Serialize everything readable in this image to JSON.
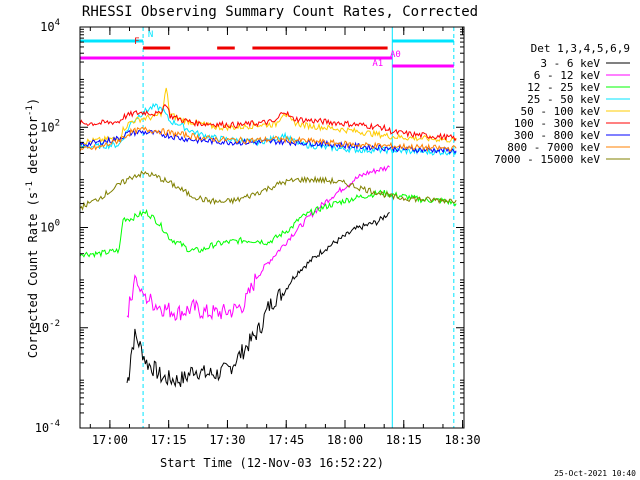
{
  "chart_data": {
    "type": "line",
    "title": "RHESSI Observing Summary Count Rates, Corrected",
    "xlabel": "Start Time (12-Nov-03 16:52:22)",
    "ylabel_main": "Corrected Count Rate (s",
    "ylabel_sup1": "-1",
    "ylabel_mid": " detector",
    "ylabel_sup2": "-1",
    "ylabel_end": ")",
    "x_start_min": 0,
    "x_end_min": 98,
    "x_ticks": [
      {
        "label": "17:00",
        "t": 7.63
      },
      {
        "label": "17:15",
        "t": 22.63
      },
      {
        "label": "17:30",
        "t": 37.63
      },
      {
        "label": "17:45",
        "t": 52.63
      },
      {
        "label": "18:00",
        "t": 67.63
      },
      {
        "label": "18:15",
        "t": 82.63
      },
      {
        "label": "18:30",
        "t": 97.63
      }
    ],
    "y_scale": "log",
    "ylim": [
      0.0001,
      10000
    ],
    "y_ticks": [
      {
        "base": "10",
        "exp": "4",
        "value": 10000
      },
      {
        "base": "10",
        "exp": "2",
        "value": 100
      },
      {
        "base": "10",
        "exp": "0",
        "value": 1
      },
      {
        "base": "10",
        "exp": "-2",
        "value": 0.01
      },
      {
        "base": "10",
        "exp": "-4",
        "value": 0.0001
      }
    ],
    "legend_title": "Det 1,3,4,5,6,9",
    "series": [
      {
        "name": "3 - 6 keV",
        "color": "#000000",
        "points": [
          [
            12,
            0.0008
          ],
          [
            12.5,
            0.0012
          ],
          [
            13,
            0.003
          ],
          [
            14,
            0.007
          ],
          [
            15,
            0.005
          ],
          [
            17,
            0.002
          ],
          [
            19,
            0.0015
          ],
          [
            21,
            0.001
          ],
          [
            25,
            0.0009
          ],
          [
            27,
            0.001
          ],
          [
            29,
            0.0015
          ],
          [
            32,
            0.0012
          ],
          [
            35,
            0.0012
          ],
          [
            38,
            0.0015
          ],
          [
            41,
            0.003
          ],
          [
            44,
            0.006
          ],
          [
            46,
            0.01
          ],
          [
            48,
            0.025
          ],
          [
            50,
            0.04
          ],
          [
            52,
            0.05
          ],
          [
            54,
            0.09
          ],
          [
            56,
            0.14
          ],
          [
            59,
            0.22
          ],
          [
            62,
            0.35
          ],
          [
            65,
            0.5
          ],
          [
            68,
            0.7
          ],
          [
            70,
            0.9
          ],
          [
            73,
            1.1
          ],
          [
            76,
            1.3
          ],
          [
            79,
            2.0
          ]
        ]
      },
      {
        "name": "6 - 12 keV",
        "color": "#ff00ff",
        "points": [
          [
            12,
            0.02
          ],
          [
            13,
            0.035
          ],
          [
            14,
            0.12
          ],
          [
            15,
            0.06
          ],
          [
            17,
            0.04
          ],
          [
            19,
            0.03
          ],
          [
            21,
            0.025
          ],
          [
            25,
            0.02
          ],
          [
            27,
            0.022
          ],
          [
            29,
            0.025
          ],
          [
            32,
            0.02
          ],
          [
            36,
            0.02
          ],
          [
            39,
            0.022
          ],
          [
            42,
            0.03
          ],
          [
            45,
            0.1
          ],
          [
            48,
            0.2
          ],
          [
            50,
            0.3
          ],
          [
            52,
            0.45
          ],
          [
            54,
            0.7
          ],
          [
            56,
            1.0
          ],
          [
            58,
            1.5
          ],
          [
            61,
            2.5
          ],
          [
            64,
            4
          ],
          [
            67,
            6
          ],
          [
            70,
            9
          ],
          [
            73,
            12
          ],
          [
            76,
            14
          ],
          [
            79,
            16
          ]
        ]
      },
      {
        "name": "12 - 25 keV",
        "color": "#00ff00",
        "points": [
          [
            0,
            0.3
          ],
          [
            5,
            0.3
          ],
          [
            10,
            0.35
          ],
          [
            11,
            1.5
          ],
          [
            13,
            1.5
          ],
          [
            15,
            1.8
          ],
          [
            17,
            2.0
          ],
          [
            19,
            1.5
          ],
          [
            21,
            1.0
          ],
          [
            23,
            0.6
          ],
          [
            26,
            0.45
          ],
          [
            28,
            0.35
          ],
          [
            31,
            0.35
          ],
          [
            34,
            0.45
          ],
          [
            37,
            0.5
          ],
          [
            41,
            0.55
          ],
          [
            45,
            0.55
          ],
          [
            48,
            0.5
          ],
          [
            51,
            0.7
          ],
          [
            54,
            1.0
          ],
          [
            56,
            1.5
          ],
          [
            59,
            2.0
          ],
          [
            62,
            2.5
          ],
          [
            65,
            3.0
          ],
          [
            68,
            3.5
          ],
          [
            71,
            4.0
          ],
          [
            74,
            4.5
          ],
          [
            77,
            5.0
          ],
          [
            80,
            4.5
          ],
          [
            84,
            4.0
          ],
          [
            88,
            3.5
          ],
          [
            92,
            3.5
          ],
          [
            96,
            3.0
          ]
        ]
      },
      {
        "name": "25 - 50 keV",
        "color": "#00e5ff",
        "points": [
          [
            0,
            40
          ],
          [
            5,
            42
          ],
          [
            10,
            45
          ],
          [
            11,
            60
          ],
          [
            13,
            120
          ],
          [
            15,
            170
          ],
          [
            17,
            220
          ],
          [
            19,
            260
          ],
          [
            21,
            230
          ],
          [
            23,
            130
          ],
          [
            25,
            120
          ],
          [
            27,
            95
          ],
          [
            30,
            75
          ],
          [
            35,
            60
          ],
          [
            40,
            55
          ],
          [
            45,
            50
          ],
          [
            50,
            60
          ],
          [
            52,
            70
          ],
          [
            54,
            55
          ],
          [
            57,
            45
          ],
          [
            62,
            40
          ],
          [
            67,
            37
          ],
          [
            72,
            35
          ],
          [
            77,
            35
          ],
          [
            80,
            34
          ],
          [
            85,
            33
          ],
          [
            90,
            32
          ],
          [
            96,
            32
          ]
        ]
      },
      {
        "name": "50 - 100 keV",
        "color": "#ffcc00",
        "points": [
          [
            0,
            50
          ],
          [
            5,
            55
          ],
          [
            10,
            60
          ],
          [
            11,
            90
          ],
          [
            13,
            130
          ],
          [
            16,
            150
          ],
          [
            19,
            160
          ],
          [
            21,
            200
          ],
          [
            22,
            600
          ],
          [
            23,
            180
          ],
          [
            26,
            140
          ],
          [
            30,
            120
          ],
          [
            35,
            100
          ],
          [
            40,
            100
          ],
          [
            45,
            110
          ],
          [
            50,
            115
          ],
          [
            52,
            200
          ],
          [
            54,
            130
          ],
          [
            57,
            110
          ],
          [
            62,
            100
          ],
          [
            67,
            90
          ],
          [
            72,
            80
          ],
          [
            77,
            70
          ],
          [
            80,
            65
          ],
          [
            86,
            60
          ],
          [
            92,
            58
          ],
          [
            96,
            55
          ]
        ]
      },
      {
        "name": "100 - 300 keV",
        "color": "#ff0000",
        "points": [
          [
            0,
            120
          ],
          [
            5,
            120
          ],
          [
            10,
            130
          ],
          [
            11,
            160
          ],
          [
            14,
            190
          ],
          [
            17,
            200
          ],
          [
            20,
            180
          ],
          [
            22,
            300
          ],
          [
            23,
            170
          ],
          [
            26,
            140
          ],
          [
            30,
            120
          ],
          [
            35,
            115
          ],
          [
            40,
            110
          ],
          [
            45,
            120
          ],
          [
            50,
            130
          ],
          [
            52,
            220
          ],
          [
            54,
            150
          ],
          [
            57,
            140
          ],
          [
            62,
            130
          ],
          [
            67,
            120
          ],
          [
            72,
            110
          ],
          [
            77,
            100
          ],
          [
            80,
            80
          ],
          [
            86,
            70
          ],
          [
            92,
            65
          ],
          [
            96,
            60
          ]
        ]
      },
      {
        "name": "300 - 800 keV",
        "color": "#0000ff",
        "points": [
          [
            0,
            45
          ],
          [
            5,
            50
          ],
          [
            10,
            60
          ],
          [
            12,
            75
          ],
          [
            15,
            80
          ],
          [
            18,
            78
          ],
          [
            22,
            70
          ],
          [
            26,
            60
          ],
          [
            30,
            55
          ],
          [
            35,
            52
          ],
          [
            40,
            50
          ],
          [
            45,
            50
          ],
          [
            50,
            52
          ],
          [
            55,
            50
          ],
          [
            60,
            48
          ],
          [
            65,
            45
          ],
          [
            70,
            42
          ],
          [
            75,
            40
          ],
          [
            80,
            38
          ],
          [
            86,
            36
          ],
          [
            92,
            35
          ],
          [
            96,
            34
          ]
        ]
      },
      {
        "name": "800 - 7000 keV",
        "color": "#ff8000",
        "points": [
          [
            0,
            35
          ],
          [
            5,
            40
          ],
          [
            10,
            55
          ],
          [
            13,
            80
          ],
          [
            16,
            90
          ],
          [
            20,
            85
          ],
          [
            24,
            75
          ],
          [
            28,
            68
          ],
          [
            32,
            60
          ],
          [
            36,
            57
          ],
          [
            40,
            55
          ],
          [
            45,
            55
          ],
          [
            50,
            58
          ],
          [
            55,
            55
          ],
          [
            60,
            52
          ],
          [
            65,
            48
          ],
          [
            70,
            45
          ],
          [
            75,
            43
          ],
          [
            80,
            42
          ],
          [
            86,
            40
          ],
          [
            92,
            38
          ],
          [
            96,
            38
          ]
        ]
      },
      {
        "name": "7000 - 15000 keV",
        "color": "#808000",
        "points": [
          [
            0,
            2.5
          ],
          [
            4,
            3.5
          ],
          [
            8,
            5.5
          ],
          [
            11,
            8
          ],
          [
            14,
            11
          ],
          [
            17,
            12
          ],
          [
            20,
            10
          ],
          [
            24,
            7
          ],
          [
            28,
            4.5
          ],
          [
            32,
            3.5
          ],
          [
            36,
            3.2
          ],
          [
            40,
            3.5
          ],
          [
            44,
            4.5
          ],
          [
            48,
            6
          ],
          [
            52,
            8
          ],
          [
            56,
            9
          ],
          [
            60,
            9
          ],
          [
            64,
            8.5
          ],
          [
            68,
            7.5
          ],
          [
            72,
            6
          ],
          [
            76,
            5
          ],
          [
            78,
            4.5
          ],
          [
            80,
            4
          ],
          [
            84,
            3.8
          ],
          [
            88,
            3.6
          ],
          [
            92,
            3.5
          ],
          [
            96,
            3.5
          ]
        ]
      }
    ],
    "vertical_lines": [
      {
        "t": 0,
        "color": "#00e5ff",
        "style": "solid"
      },
      {
        "t": 16.1,
        "color": "#00e5ff",
        "style": "dashed"
      },
      {
        "t": 79.7,
        "color": "#00e5ff",
        "style": "solid"
      },
      {
        "t": 95.4,
        "color": "#00e5ff",
        "style": "dashed"
      }
    ],
    "flags": [
      {
        "label": "N",
        "color": "#00e5ff",
        "row": "top",
        "segments": [
          [
            0,
            16.1
          ],
          [
            79.7,
            95.4
          ]
        ],
        "label_t": 18
      },
      {
        "label": "F",
        "color": "#ee0000",
        "row": "mid",
        "segments": [
          [
            16.1,
            23
          ],
          [
            35,
            39.5
          ],
          [
            44,
            78.5
          ]
        ],
        "label_t": 14.5
      },
      {
        "label": "A0",
        "color": "#ff00ff",
        "row": "low",
        "segments": [
          [
            0,
            79.7
          ]
        ],
        "label_t": 80.5
      },
      {
        "label": "A1",
        "color": "#ff00ff",
        "row": "low2",
        "segments": [
          [
            79.7,
            95.4
          ]
        ],
        "label_t": 76
      }
    ],
    "timestamp": "25-Oct-2021 10:40"
  }
}
